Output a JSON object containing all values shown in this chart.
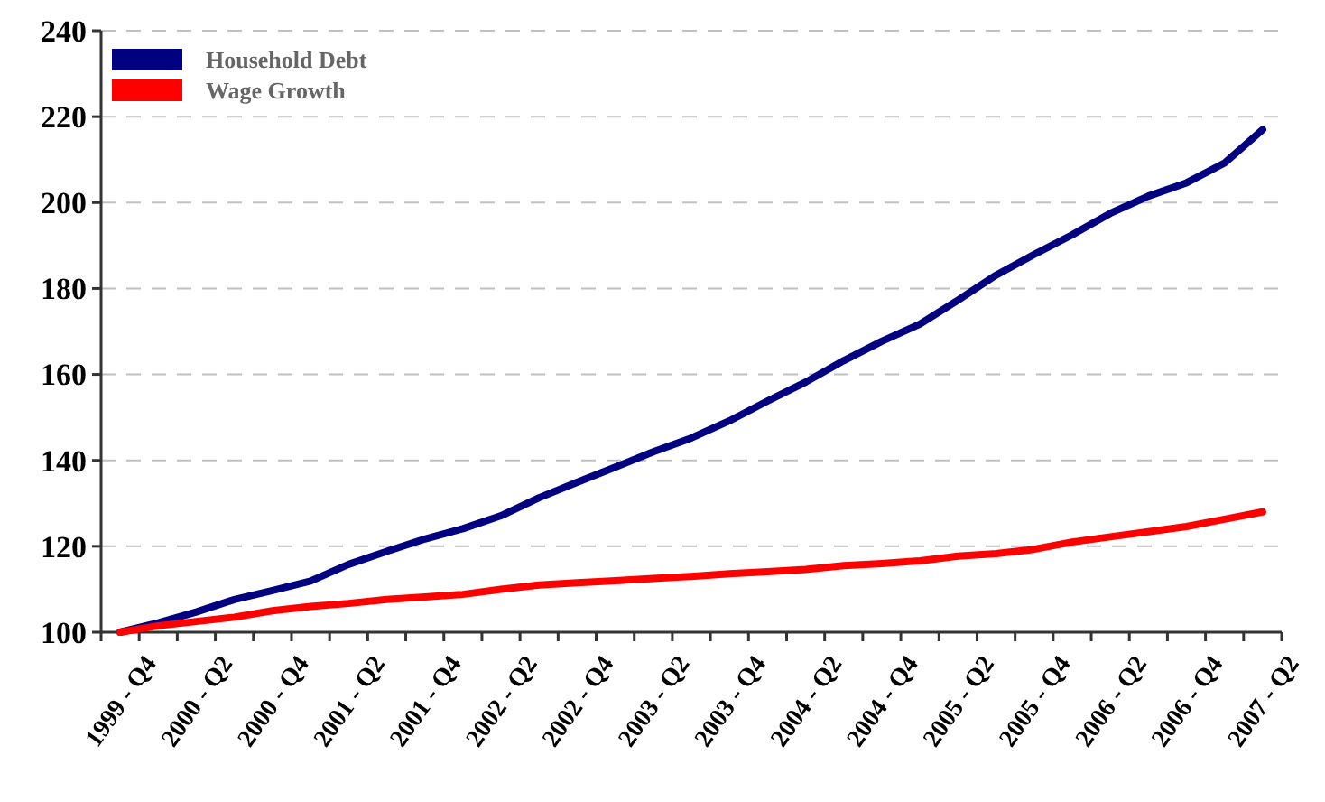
{
  "chart_data": {
    "type": "line",
    "categories": [
      "1999 - Q4",
      null,
      "2000 - Q2",
      null,
      "2000 - Q4",
      null,
      "2001 - Q2",
      null,
      "2001 - Q4",
      null,
      "2002 - Q2",
      null,
      "2002 - Q4",
      null,
      "2003 - Q2",
      null,
      "2003 - Q4",
      null,
      "2004 - Q2",
      null,
      "2004 - Q4",
      null,
      "2005 - Q2",
      null,
      "2005 - Q4",
      null,
      "2006 - Q2",
      null,
      "2006 - Q4",
      null,
      "2007 - Q2"
    ],
    "series": [
      {
        "name": "Household Debt",
        "color": "#000080",
        "values": [
          100,
          102.2,
          104.7,
          107.6,
          109.7,
          111.9,
          115.8,
          118.8,
          121.7,
          124.1,
          127.1,
          131.3,
          134.9,
          138.4,
          142,
          145.2,
          149.2,
          153.8,
          158.2,
          163.2,
          167.7,
          171.7,
          177.3,
          183.1,
          187.9,
          192.5,
          197.5,
          201.5,
          204.6,
          209.2,
          217
        ]
      },
      {
        "name": "Wage Growth",
        "color": "#ff0000",
        "values": [
          100,
          101.5,
          102.5,
          103.5,
          105,
          106,
          106.7,
          107.6,
          108.2,
          108.8,
          110,
          111,
          111.5,
          112,
          112.5,
          113,
          113.6,
          114.1,
          114.6,
          115.5,
          116,
          116.6,
          117.7,
          118.3,
          119.3,
          121,
          122.2,
          123.4,
          124.6,
          126.3,
          128
        ]
      }
    ],
    "ylim": [
      100,
      240
    ],
    "yticks": [
      100,
      120,
      140,
      160,
      180,
      200,
      220,
      240
    ],
    "grid": "y",
    "legend": "top left",
    "marker": "none",
    "line_style": "solid"
  }
}
